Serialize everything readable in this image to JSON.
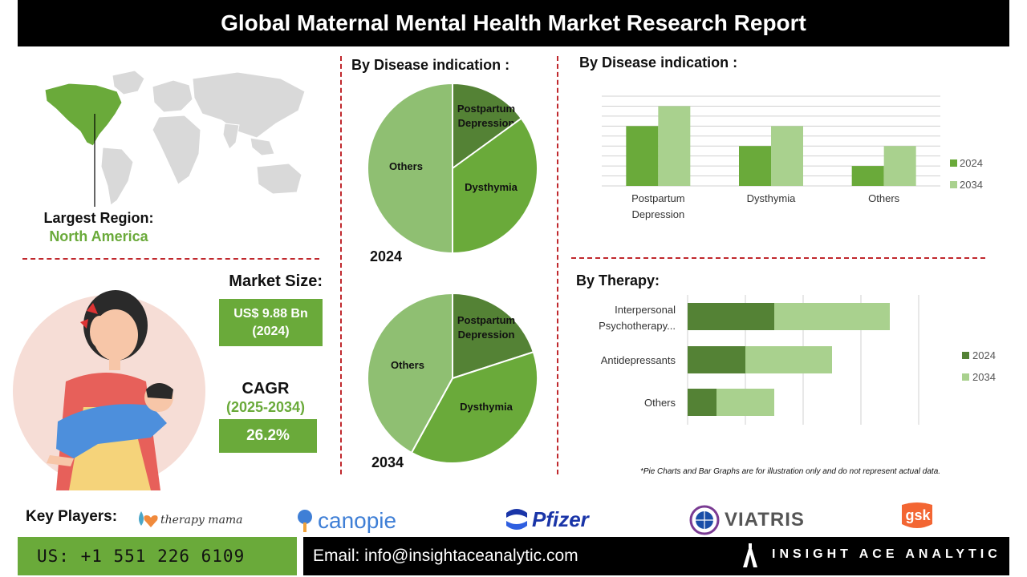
{
  "header": {
    "title": "Global Maternal Mental Health Market Research Report"
  },
  "region": {
    "label": "Largest Region:",
    "value": "North America"
  },
  "market": {
    "size_label": "Market Size:",
    "size_value": "US$ 9.88 Bn",
    "size_year": "(2024)",
    "cagr_label": "CAGR",
    "cagr_period": "(2025-2034)",
    "cagr_value": "26.2%"
  },
  "pie_section": {
    "title": "By Disease indication  :"
  },
  "bar_section": {
    "title": "By Disease indication  :"
  },
  "therapy_section": {
    "title": "By Therapy:"
  },
  "note": "*Pie Charts and Bar Graphs are for illustration only and do not represent actual data.",
  "key_players": {
    "label": "Key Players:",
    "logos": [
      {
        "name": "therapy mama",
        "icon": "heart-drop-icon"
      },
      {
        "name": "canopie",
        "icon": "tree-icon"
      },
      {
        "name": "Pfizer",
        "icon": "pfizer-pill-icon"
      },
      {
        "name": "VIATRIS",
        "icon": "globe-icon"
      },
      {
        "name": "gsk",
        "icon": "gsk-badge-icon"
      }
    ]
  },
  "footer": {
    "phone": "US: +1 551 226 6109",
    "email": "Email: info@insightaceanalytic.com",
    "brand": "INSIGHT ACE ANALYTIC"
  },
  "colors": {
    "dark_green": "#548235",
    "mid_green": "#6aaa3a",
    "light_green": "#a9d18e",
    "pie_light": "#8fbf72",
    "accent_red": "#c0282d"
  },
  "chart_data": [
    {
      "type": "pie",
      "label": "2024",
      "slices": [
        {
          "name": "Postpartum Depression",
          "value": 15
        },
        {
          "name": "Dysthymia",
          "value": 35
        },
        {
          "name": "Others",
          "value": 50
        }
      ]
    },
    {
      "type": "pie",
      "label": "2034",
      "slices": [
        {
          "name": "Postpartum Depression",
          "value": 20
        },
        {
          "name": "Dysthymia",
          "value": 38
        },
        {
          "name": "Others",
          "value": 42
        }
      ]
    },
    {
      "type": "bar",
      "categories": [
        "Postpartum Depression",
        "Dysthymia",
        "Others"
      ],
      "series": [
        {
          "name": "2024",
          "values": [
            6,
            4,
            2
          ]
        },
        {
          "name": "2034",
          "values": [
            8,
            6,
            4
          ]
        }
      ],
      "ylim": [
        0,
        9
      ],
      "grid": true,
      "legend": "right"
    },
    {
      "type": "bar",
      "orientation": "horizontal",
      "stacked": true,
      "categories": [
        "Interpersonal Psychotherapy...",
        "Antidepressants",
        "Others"
      ],
      "series": [
        {
          "name": "2024",
          "values": [
            3,
            2,
            1
          ]
        },
        {
          "name": "2034",
          "values": [
            4,
            3,
            2
          ]
        }
      ],
      "xlim": [
        0,
        9
      ],
      "grid": true,
      "legend": "right"
    }
  ]
}
